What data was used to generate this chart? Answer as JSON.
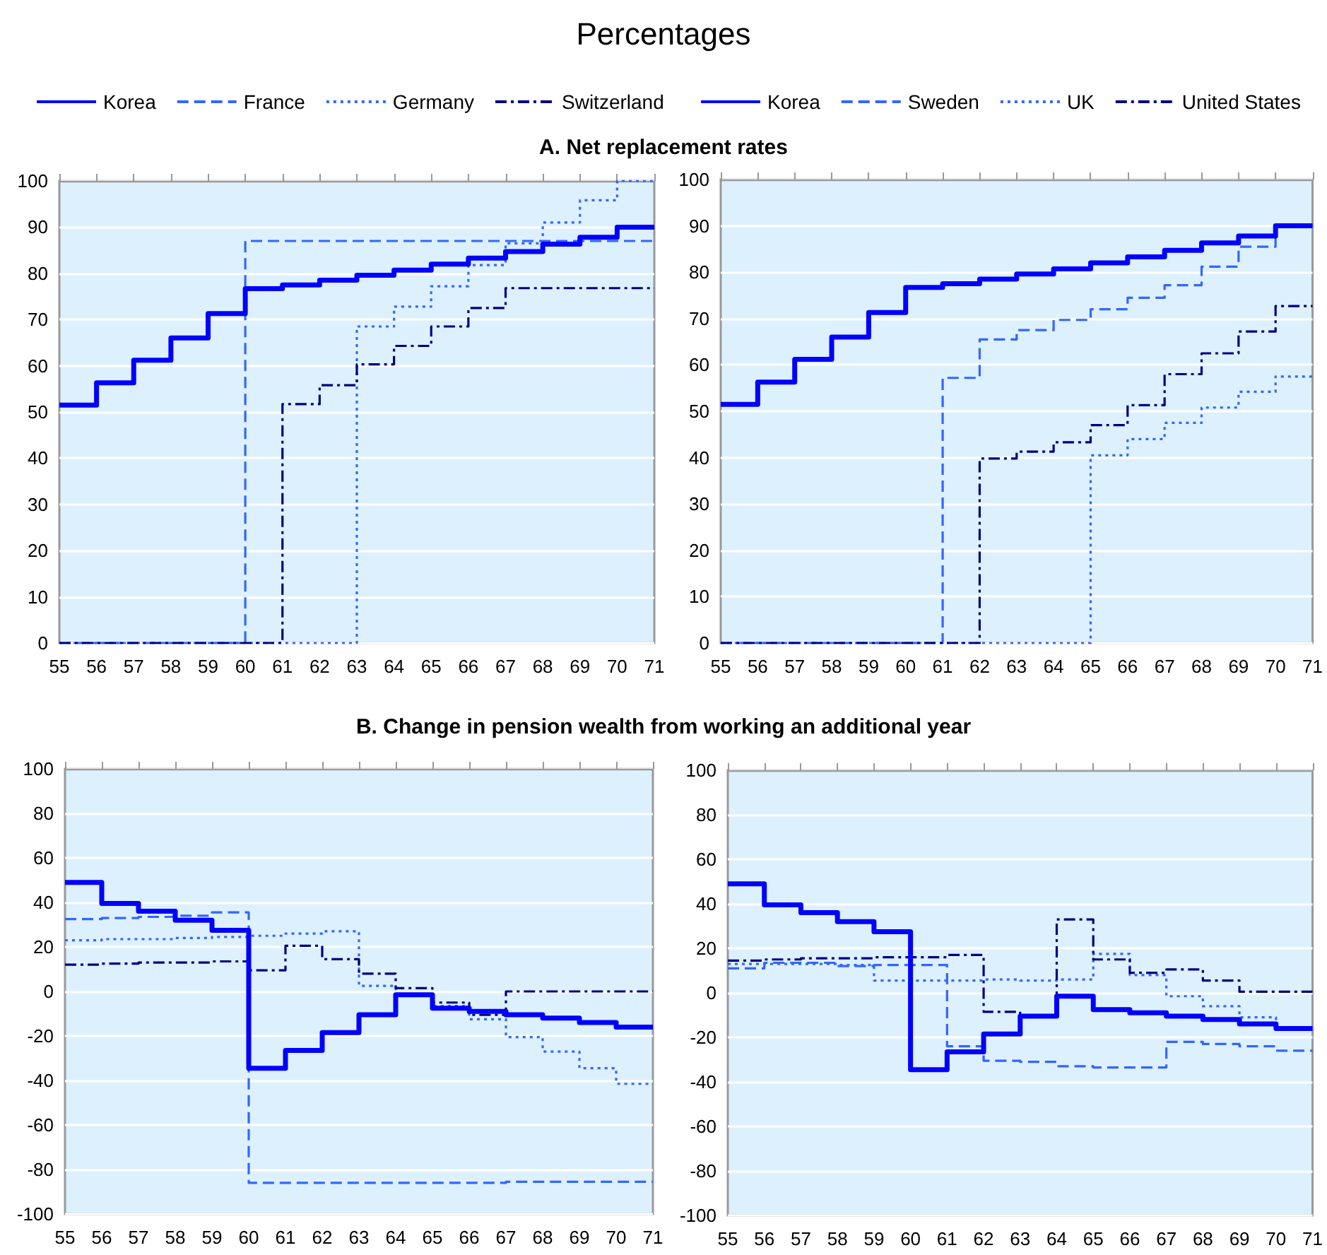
{
  "chart_data": [
    {
      "type": "step",
      "title": "Percentages",
      "subtitle": "A. Net replacement rates",
      "x": [
        55,
        56,
        57,
        58,
        59,
        60,
        61,
        62,
        63,
        64,
        65,
        66,
        67,
        68,
        69,
        70,
        71
      ],
      "xlim": [
        55,
        71
      ],
      "xticks": [
        55,
        56,
        57,
        58,
        59,
        60,
        61,
        62,
        63,
        64,
        65,
        66,
        67,
        68,
        69,
        70,
        71
      ],
      "ylim": [
        0,
        100
      ],
      "yticks": [
        0,
        10,
        20,
        30,
        40,
        50,
        60,
        70,
        80,
        90,
        100
      ],
      "grid": "y",
      "legend": "top",
      "marker": "none",
      "series": [
        {
          "name": "Korea",
          "color": "#0000ff",
          "line_style": "solid",
          "values": [
            51.5,
            56.3,
            61.2,
            66,
            71.3,
            76.7,
            77.5,
            78.5,
            79.6,
            80.7,
            82,
            83.3,
            84.7,
            86.3,
            87.8,
            90,
            90
          ]
        },
        {
          "name": "France",
          "color": "#3366ff",
          "line_style": "dashed",
          "values": [
            0,
            0,
            0,
            0,
            0,
            87,
            87,
            87,
            87,
            87,
            87,
            87,
            87,
            87,
            87,
            87,
            87
          ]
        },
        {
          "name": "Germany",
          "color": "#3366ff",
          "line_style": "dotted",
          "values": [
            0,
            0,
            0,
            0,
            0,
            0,
            0,
            0,
            68.5,
            72.8,
            77.2,
            81.8,
            86.5,
            91,
            95.8,
            100,
            100
          ]
        },
        {
          "name": "Switzerland",
          "color": "#000080",
          "line_style": "dashdot",
          "values": [
            0,
            0,
            0,
            0,
            0,
            0,
            51.7,
            55.8,
            60.3,
            64.3,
            68.5,
            72.5,
            76.8,
            76.8,
            76.8,
            76.8,
            76.8
          ]
        }
      ]
    },
    {
      "type": "step",
      "x": [
        55,
        56,
        57,
        58,
        59,
        60,
        61,
        62,
        63,
        64,
        65,
        66,
        67,
        68,
        69,
        70,
        71
      ],
      "xlim": [
        55,
        71
      ],
      "xticks": [
        55,
        56,
        57,
        58,
        59,
        60,
        61,
        62,
        63,
        64,
        65,
        66,
        67,
        68,
        69,
        70,
        71
      ],
      "ylim": [
        0,
        100
      ],
      "yticks": [
        0,
        10,
        20,
        30,
        40,
        50,
        60,
        70,
        80,
        90,
        100
      ],
      "grid": "y",
      "legend": "top",
      "marker": "none",
      "series": [
        {
          "name": "Korea",
          "color": "#0000ff",
          "line_style": "solid",
          "values": [
            51.5,
            56.3,
            61.2,
            66,
            71.3,
            76.7,
            77.5,
            78.5,
            79.6,
            80.7,
            82,
            83.3,
            84.7,
            86.3,
            87.8,
            90,
            90
          ]
        },
        {
          "name": "Sweden",
          "color": "#3366ff",
          "line_style": "dashed",
          "values": [
            0,
            0,
            0,
            0,
            0,
            0,
            57.2,
            65.5,
            67.5,
            69.7,
            72,
            74.5,
            77.2,
            81.2,
            85.5,
            90,
            90
          ]
        },
        {
          "name": "UK",
          "color": "#3366ff",
          "line_style": "dotted",
          "values": [
            0,
            0,
            0,
            0,
            0,
            0,
            0,
            0,
            0,
            0,
            40.5,
            44,
            47.5,
            50.8,
            54.2,
            57.5,
            57.5
          ]
        },
        {
          "name": "United States",
          "color": "#000080",
          "line_style": "dashdot",
          "values": [
            0,
            0,
            0,
            0,
            0,
            0,
            0,
            39.8,
            41.3,
            43.3,
            47,
            51.3,
            58,
            62.5,
            67.2,
            72.7,
            72.7
          ]
        }
      ]
    },
    {
      "type": "step",
      "title": "B. Change in pension wealth from working an additional year",
      "x": [
        55,
        56,
        57,
        58,
        59,
        60,
        61,
        62,
        63,
        64,
        65,
        66,
        67,
        68,
        69,
        70,
        71
      ],
      "xlim": [
        55,
        71
      ],
      "xticks": [
        55,
        56,
        57,
        58,
        59,
        60,
        61,
        62,
        63,
        64,
        65,
        66,
        67,
        68,
        69,
        70,
        71
      ],
      "ylim": [
        -100,
        100
      ],
      "yticks": [
        -100,
        -80,
        -60,
        -40,
        -20,
        0,
        20,
        40,
        60,
        80,
        100
      ],
      "grid": "y",
      "marker": "none",
      "series": [
        {
          "color": "#0000ff",
          "line_style": "solid",
          "values": [
            49,
            39.5,
            36,
            32,
            27.5,
            -34.5,
            -26.5,
            -18.5,
            -10.5,
            -1.5,
            -7.5,
            -9,
            -10.5,
            -12,
            -14,
            -16,
            -16
          ]
        },
        {
          "color": "#3366ff",
          "line_style": "dashed",
          "values": [
            32.5,
            33,
            33.5,
            34,
            35.5,
            -86,
            -86,
            -86,
            -86,
            -86,
            -86,
            -86,
            -85.5,
            -85.5,
            -85.5,
            -85.5,
            -85.5
          ]
        },
        {
          "color": "#3366ff",
          "line_style": "dotted",
          "values": [
            23,
            23.5,
            23.5,
            24,
            24.5,
            25,
            26,
            27,
            2.5,
            -1.5,
            -6.5,
            -12.5,
            -20.5,
            -27,
            -34.5,
            -41.5,
            -41.5
          ]
        },
        {
          "color": "#000080",
          "line_style": "dashdot",
          "values": [
            12,
            12.5,
            13,
            13,
            13.5,
            9.5,
            20.5,
            14.5,
            8,
            1.5,
            -5,
            -10.5,
            0,
            0,
            0,
            0,
            0
          ]
        }
      ]
    },
    {
      "type": "step",
      "x": [
        55,
        56,
        57,
        58,
        59,
        60,
        61,
        62,
        63,
        64,
        65,
        66,
        67,
        68,
        69,
        70,
        71
      ],
      "xlim": [
        55,
        71
      ],
      "xticks": [
        55,
        56,
        57,
        58,
        59,
        60,
        61,
        62,
        63,
        64,
        65,
        66,
        67,
        68,
        69,
        70,
        71
      ],
      "ylim": [
        -100,
        100
      ],
      "yticks": [
        -100,
        -80,
        -60,
        -40,
        -20,
        0,
        20,
        40,
        60,
        80,
        100
      ],
      "grid": "y",
      "marker": "none",
      "series": [
        {
          "color": "#0000ff",
          "line_style": "solid",
          "values": [
            49,
            39.5,
            36,
            32,
            27.5,
            -34.5,
            -26.5,
            -18.5,
            -10.5,
            -1.5,
            -7.5,
            -9,
            -10.5,
            -12,
            -14,
            -16,
            -16
          ]
        },
        {
          "color": "#3366ff",
          "line_style": "dashed",
          "values": [
            11,
            13.5,
            13.5,
            12,
            12.5,
            12.5,
            -24,
            -30.5,
            -31,
            -33,
            -33.5,
            -33.5,
            -22,
            -23,
            -24,
            -26,
            -26
          ]
        },
        {
          "color": "#3366ff",
          "line_style": "dotted",
          "values": [
            13,
            13,
            13,
            12.5,
            5.5,
            5.5,
            5.5,
            6,
            5.5,
            6,
            17.5,
            8,
            -1.5,
            -6,
            -11,
            -16,
            -16
          ]
        },
        {
          "color": "#000080",
          "line_style": "dashdot",
          "values": [
            14.5,
            15,
            15.5,
            15.5,
            16,
            16,
            17,
            -8.5,
            -10,
            33,
            15,
            9,
            10.5,
            5.5,
            0.5,
            0.5,
            0.5
          ]
        }
      ]
    }
  ]
}
